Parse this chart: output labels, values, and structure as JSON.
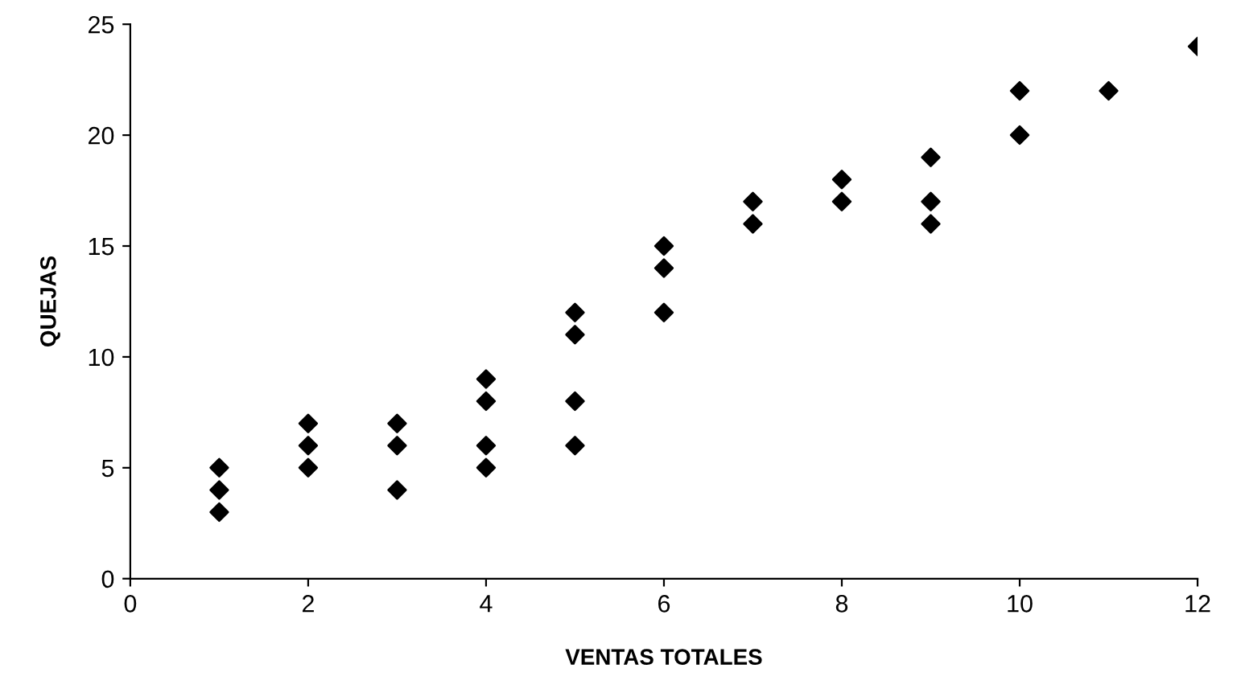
{
  "chart_data": {
    "type": "scatter",
    "xlabel": "VENTAS TOTALES",
    "ylabel": "QUEJAS",
    "series": [
      {
        "color": "#000000",
        "x": [
          1,
          1,
          1,
          2,
          2,
          2,
          3,
          3,
          3,
          4,
          4,
          4,
          4,
          5,
          5,
          5,
          5,
          6,
          6,
          6,
          7,
          7,
          8,
          8,
          9,
          9,
          9,
          10,
          10,
          11,
          12
        ],
        "values": [
          3,
          4,
          5,
          5,
          6,
          7,
          4,
          6,
          7,
          5,
          6,
          8,
          9,
          6,
          8,
          11,
          12,
          12,
          14,
          15,
          16,
          17,
          17,
          18,
          16,
          17,
          19,
          20,
          22,
          22,
          24
        ]
      }
    ],
    "marker": "diamond",
    "xlim": [
      0,
      12
    ],
    "ylim": [
      0,
      25
    ],
    "xticks": [
      0,
      2,
      4,
      6,
      8,
      10,
      12
    ],
    "yticks": [
      0,
      5,
      10,
      15,
      20,
      25
    ],
    "grid": false,
    "legend": false
  }
}
